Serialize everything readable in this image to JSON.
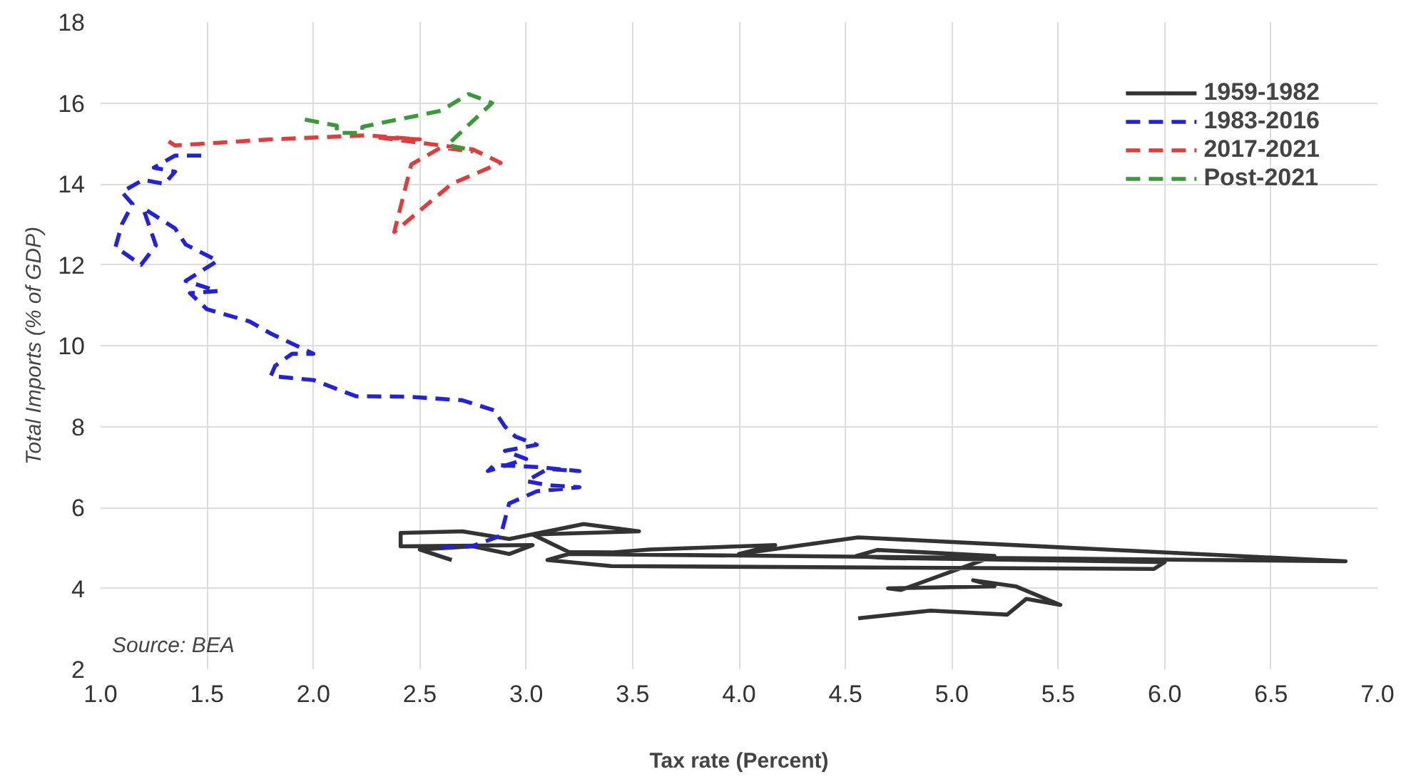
{
  "chart_data": {
    "type": "line",
    "xlabel": "Tax rate (Percent)",
    "ylabel": "Total Imports (% of GDP)",
    "annotations": [
      "Source: BEA"
    ],
    "xlim": [
      1.0,
      7.0
    ],
    "ylim": [
      2,
      18
    ],
    "xticks": [
      {
        "value": 1,
        "label": "1.0"
      },
      {
        "value": 1.5,
        "label": "1.5"
      },
      {
        "value": 2,
        "label": "2.0"
      },
      {
        "value": 2.5,
        "label": "2.5"
      },
      {
        "value": 3,
        "label": "3.0"
      },
      {
        "value": 3.5,
        "label": "3.5"
      },
      {
        "value": 4,
        "label": "4.0"
      },
      {
        "value": 4.5,
        "label": "4.5"
      },
      {
        "value": 5,
        "label": "5.0"
      },
      {
        "value": 5.5,
        "label": "5.5"
      },
      {
        "value": 6,
        "label": "6.0"
      },
      {
        "value": 6.5,
        "label": "6.5"
      },
      {
        "value": 7,
        "label": "7.0"
      }
    ],
    "yticks": [
      2,
      4,
      6,
      8,
      10,
      12,
      14,
      16,
      18
    ],
    "grid": true,
    "legend": "top right",
    "series": [
      {
        "name": "1959-1982",
        "color": "#333333",
        "line_style": "solid",
        "x": [
          2.65,
          2.5,
          2.75,
          2.92,
          3.03,
          2.41,
          2.41,
          2.7,
          2.92,
          3.27,
          3.53,
          3.03,
          3.2,
          3.41,
          3.58,
          4.17,
          4.0,
          4.56,
          6.85,
          3.2,
          3.1,
          3.4,
          5.95,
          6.0,
          4.7,
          4.55,
          4.65,
          5.2,
          5.19,
          4.76,
          4.7,
          5.2,
          5.1,
          5.3,
          5.51,
          5.35,
          5.26,
          4.9,
          4.56
        ],
        "values": [
          4.7,
          4.96,
          5.04,
          4.85,
          5.07,
          5.04,
          5.37,
          5.41,
          5.22,
          5.59,
          5.41,
          5.33,
          4.9,
          4.89,
          4.96,
          5.07,
          4.85,
          5.26,
          4.67,
          4.85,
          4.7,
          4.55,
          4.48,
          4.65,
          4.75,
          4.8,
          4.95,
          4.8,
          4.78,
          3.96,
          4.0,
          4.05,
          4.2,
          4.05,
          3.59,
          3.74,
          3.35,
          3.45,
          3.26
        ]
      },
      {
        "name": "1983-2016",
        "color": "#2222dd",
        "line_style": "dashed",
        "x": [
          2.6,
          2.75,
          2.88,
          2.9,
          2.92,
          3.05,
          3.25,
          3.1,
          3.0,
          3.1,
          3.25,
          3.05,
          2.85,
          2.82,
          3.0,
          2.9,
          3.05,
          2.95,
          2.9,
          2.85,
          2.7,
          2.44,
          2.2,
          2.0,
          1.8,
          1.82,
          1.9,
          2.0,
          1.8,
          1.7,
          1.5,
          1.42,
          1.55,
          1.4,
          1.55,
          1.4,
          1.35,
          1.2,
          1.26,
          1.19,
          1.07,
          1.1,
          1.15,
          1.1,
          1.2,
          1.3,
          1.35,
          1.25,
          1.35,
          1.49
        ],
        "values": [
          5.0,
          5.05,
          5.3,
          5.7,
          6.1,
          6.4,
          6.5,
          6.55,
          6.65,
          6.95,
          6.9,
          7.0,
          7.05,
          6.9,
          7.2,
          7.4,
          7.55,
          7.75,
          8.0,
          8.4,
          8.65,
          8.74,
          8.75,
          9.15,
          9.25,
          9.5,
          9.8,
          9.8,
          10.3,
          10.6,
          10.9,
          11.3,
          11.35,
          11.6,
          12.1,
          12.5,
          12.9,
          13.4,
          12.48,
          12.0,
          12.44,
          13.0,
          13.5,
          13.8,
          14.1,
          14.0,
          14.3,
          14.4,
          14.7,
          14.7
        ]
      },
      {
        "name": "2017-2021",
        "color": "#e03c3c",
        "line_style": "dashed",
        "x": [
          1.32,
          1.35,
          1.8,
          2.25,
          2.5,
          2.3,
          2.75,
          2.88,
          2.65,
          2.38,
          2.46,
          2.6,
          2.75
        ],
        "values": [
          15.05,
          14.95,
          15.1,
          15.2,
          15.1,
          15.15,
          14.85,
          14.52,
          14.0,
          12.81,
          14.48,
          14.9,
          14.8
        ]
      },
      {
        "name": "Post-2021",
        "color": "#3a9a3a",
        "line_style": "dashed",
        "x": [
          1.96,
          2.11,
          2.11,
          2.23,
          2.23,
          2.6,
          2.73,
          2.84,
          2.72,
          2.63,
          2.73
        ],
        "values": [
          15.59,
          15.44,
          15.26,
          15.26,
          15.41,
          15.81,
          16.22,
          16.0,
          15.41,
          14.96,
          14.85
        ]
      }
    ]
  }
}
